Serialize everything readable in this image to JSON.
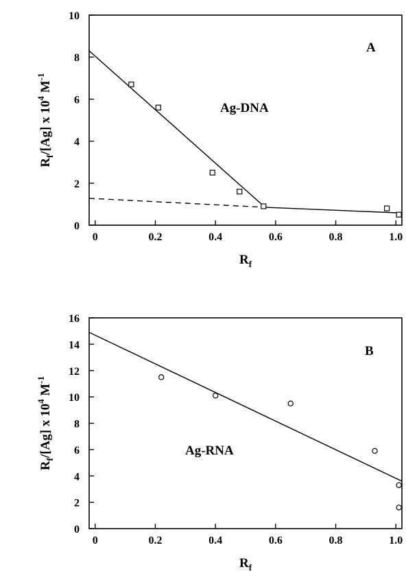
{
  "chart_data": [
    {
      "type": "scatter",
      "panel_label": "A",
      "annotation": "Ag-DNA",
      "xlabel": "R",
      "xlabel_sub": "f",
      "ylabel": {
        "a": "R",
        "a_sub": "f",
        "b": "/[Ag] x 10",
        "b_sup": "4",
        "c": " M",
        "c_sup": "-1"
      },
      "xlim": [
        -0.02,
        1.02
      ],
      "ylim": [
        0,
        10
      ],
      "x_ticks": [
        {
          "v": 0,
          "label": "0"
        },
        {
          "v": 0.2,
          "label": "0.2"
        },
        {
          "v": 0.4,
          "label": "0.4"
        },
        {
          "v": 0.6,
          "label": "0.6"
        },
        {
          "v": 0.8,
          "label": "0.8"
        },
        {
          "v": 1.0,
          "label": "1.0"
        }
      ],
      "y_ticks": [
        {
          "v": 0,
          "label": "0"
        },
        {
          "v": 2,
          "label": "2"
        },
        {
          "v": 4,
          "label": "4"
        },
        {
          "v": 6,
          "label": "6"
        },
        {
          "v": 8,
          "label": "8"
        },
        {
          "v": 10,
          "label": "10"
        }
      ],
      "grid": false,
      "marker": "square",
      "points": [
        {
          "x": 0.12,
          "y": 6.7
        },
        {
          "x": 0.21,
          "y": 5.6
        },
        {
          "x": 0.39,
          "y": 2.5
        },
        {
          "x": 0.48,
          "y": 1.6
        },
        {
          "x": 0.56,
          "y": 0.9
        },
        {
          "x": 0.97,
          "y": 0.8
        },
        {
          "x": 1.01,
          "y": 0.5
        }
      ],
      "lines": [
        {
          "style": "solid",
          "points": [
            [
              -0.02,
              8.3
            ],
            [
              0.565,
              0.85
            ],
            [
              1.02,
              0.58
            ]
          ]
        },
        {
          "style": "dashed",
          "points": [
            [
              -0.02,
              1.28
            ],
            [
              0.565,
              0.85
            ]
          ]
        }
      ]
    },
    {
      "type": "scatter",
      "panel_label": "B",
      "annotation": "Ag-RNA",
      "xlabel": "R",
      "xlabel_sub": "f",
      "ylabel": {
        "a": "R",
        "a_sub": "f",
        "b": "/[Ag] x 10",
        "b_sup": "4",
        "c": " M",
        "c_sup": "-1"
      },
      "xlim": [
        -0.02,
        1.02
      ],
      "ylim": [
        0,
        16
      ],
      "x_ticks": [
        {
          "v": 0,
          "label": "0"
        },
        {
          "v": 0.2,
          "label": "0.2"
        },
        {
          "v": 0.4,
          "label": "0.4"
        },
        {
          "v": 0.6,
          "label": "0.6"
        },
        {
          "v": 0.8,
          "label": "0.8"
        },
        {
          "v": 1.0,
          "label": "1.0"
        }
      ],
      "y_ticks": [
        {
          "v": 0,
          "label": "0"
        },
        {
          "v": 2,
          "label": "2"
        },
        {
          "v": 4,
          "label": "4"
        },
        {
          "v": 6,
          "label": "6"
        },
        {
          "v": 8,
          "label": "8"
        },
        {
          "v": 10,
          "label": "10"
        },
        {
          "v": 12,
          "label": "12"
        },
        {
          "v": 14,
          "label": "14"
        },
        {
          "v": 16,
          "label": "16"
        }
      ],
      "grid": false,
      "marker": "circle",
      "points": [
        {
          "x": 0.22,
          "y": 11.5
        },
        {
          "x": 0.4,
          "y": 10.1
        },
        {
          "x": 0.65,
          "y": 9.5
        },
        {
          "x": 0.93,
          "y": 5.9
        },
        {
          "x": 1.01,
          "y": 3.3
        },
        {
          "x": 1.01,
          "y": 1.6
        }
      ],
      "lines": [
        {
          "style": "solid",
          "points": [
            [
              -0.02,
              14.9
            ],
            [
              1.02,
              3.6
            ]
          ]
        }
      ]
    }
  ]
}
